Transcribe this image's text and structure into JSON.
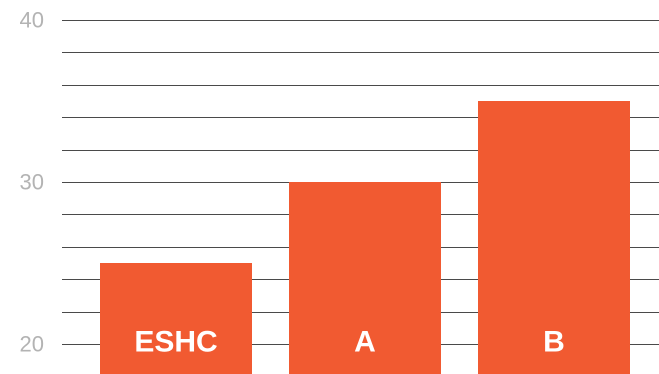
{
  "chart_data": {
    "type": "bar",
    "categories": [
      "ESHC",
      "A",
      "B"
    ],
    "values": [
      25,
      30,
      35
    ],
    "title": "",
    "xlabel": "",
    "ylabel": "",
    "ylim": [
      20,
      40
    ],
    "yticks": [
      20,
      30,
      40
    ],
    "gridlines_every": 2,
    "grid": true,
    "bar_color": "#f15a31",
    "label_color": "#ffffff",
    "grid_color": "#4a4a4a",
    "tick_color": "#b3b3b3"
  }
}
